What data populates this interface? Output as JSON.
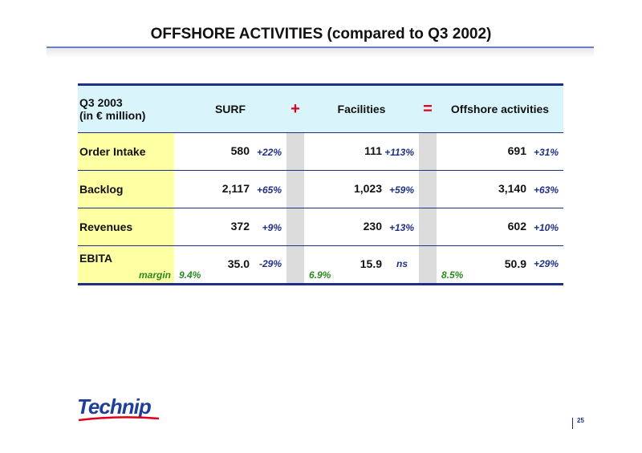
{
  "page": {
    "title": "OFFSHORE ACTIVITIES (compared to Q3 2002)",
    "page_number": "25"
  },
  "table": {
    "header": {
      "period": "Q3 2003",
      "unit": "(in € million)",
      "col1": "SURF",
      "op1": "+",
      "col2": "Facilities",
      "op2": "=",
      "col3": "Offshore activities"
    },
    "rows": [
      {
        "label": "Order Intake",
        "surf": "580",
        "surf_change": "+22%",
        "fac": "111",
        "fac_change": "+113%",
        "off": "691",
        "off_change": "+31%"
      },
      {
        "label": "Backlog",
        "surf": "2,117",
        "surf_change": "+65%",
        "fac": "1,023",
        "fac_change": "+59%",
        "off": "3,140",
        "off_change": "+63%"
      },
      {
        "label": "Revenues",
        "surf": "372",
        "surf_change": "+9%",
        "fac": "230",
        "fac_change": "+13%",
        "off": "602",
        "off_change": "+10%"
      },
      {
        "label": "EBITA",
        "surf": "35.0",
        "surf_change": "-29%",
        "fac": "15.9",
        "fac_change": "ns",
        "off": "50.9",
        "off_change": "+29%"
      }
    ],
    "margin": {
      "label": "margin",
      "surf": "9.4%",
      "fac": "6.9%",
      "off": "8.5%"
    }
  },
  "logo": {
    "text": "Technip",
    "color": "#1f3f9a"
  }
}
